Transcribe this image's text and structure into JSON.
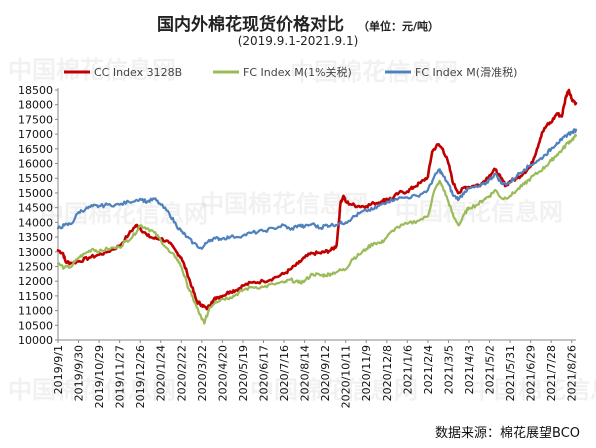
{
  "title": "国内外棉花现货价格对比",
  "unit": "（单位：元/吨）",
  "subtitle": "(2019.9.1-2021.9.1)",
  "source": "数据来源：棉花展望BCO",
  "watermark": "中国棉花信息网",
  "chart_data": {
    "type": "line",
    "title": "国内外棉花现货价格对比",
    "ylim": [
      10000,
      18500
    ],
    "y_ticks": [
      10000,
      10500,
      11000,
      11500,
      12000,
      12500,
      13000,
      13500,
      14000,
      14500,
      15000,
      15500,
      16000,
      16500,
      17000,
      17500,
      18000,
      18500
    ],
    "x_range": [
      "2019-09-01",
      "2021-09-01"
    ],
    "x_tick_labels": [
      "2019/9/1",
      "2019/9/30",
      "2019/10/29",
      "2019/11/27",
      "2019/12/26",
      "2020/1/24",
      "2020/2/22",
      "2020/3/22",
      "2020/4/20",
      "2020/5/19",
      "2020/6/17",
      "2020/7/16",
      "2020/8/14",
      "2020/9/12",
      "2020/10/11",
      "2020/11/9",
      "2020/12/8",
      "2021/1/6",
      "2021/2/4",
      "2021/3/5",
      "2021/4/3",
      "2021/5/2",
      "2021/5/31",
      "2021/6/29",
      "2021/7/28",
      "2021/8/26"
    ],
    "legend": "top",
    "series": [
      {
        "name": "CC Index 3128B",
        "color": "#c00000",
        "points": [
          [
            "2019-09-01",
            13050
          ],
          [
            "2019-09-08",
            12950
          ],
          [
            "2019-09-12",
            12650
          ],
          [
            "2019-09-20",
            12620
          ],
          [
            "2019-10-01",
            12680
          ],
          [
            "2019-10-15",
            12800
          ],
          [
            "2019-10-29",
            12900
          ],
          [
            "2019-11-10",
            13000
          ],
          [
            "2019-11-27",
            13200
          ],
          [
            "2019-12-10",
            13600
          ],
          [
            "2019-12-20",
            13900
          ],
          [
            "2019-12-26",
            13800
          ],
          [
            "2020-01-05",
            13550
          ],
          [
            "2020-01-15",
            13450
          ],
          [
            "2020-01-24",
            13450
          ],
          [
            "2020-02-05",
            13300
          ],
          [
            "2020-02-15",
            13000
          ],
          [
            "2020-02-22",
            12800
          ],
          [
            "2020-03-01",
            12300
          ],
          [
            "2020-03-08",
            11800
          ],
          [
            "2020-03-15",
            11300
          ],
          [
            "2020-03-22",
            11200
          ],
          [
            "2020-03-29",
            11050
          ],
          [
            "2020-04-05",
            11300
          ],
          [
            "2020-04-12",
            11450
          ],
          [
            "2020-04-20",
            11500
          ],
          [
            "2020-05-01",
            11650
          ],
          [
            "2020-05-10",
            11700
          ],
          [
            "2020-05-19",
            11850
          ],
          [
            "2020-06-01",
            11950
          ],
          [
            "2020-06-17",
            12000
          ],
          [
            "2020-07-01",
            12100
          ],
          [
            "2020-07-16",
            12250
          ],
          [
            "2020-07-25",
            12400
          ],
          [
            "2020-08-05",
            12600
          ],
          [
            "2020-08-14",
            12800
          ],
          [
            "2020-08-25",
            12950
          ],
          [
            "2020-09-05",
            12950
          ],
          [
            "2020-09-12",
            13000
          ],
          [
            "2020-09-20",
            13050
          ],
          [
            "2020-09-28",
            13200
          ],
          [
            "2020-10-04",
            14700
          ],
          [
            "2020-10-08",
            14900
          ],
          [
            "2020-10-11",
            14700
          ],
          [
            "2020-10-20",
            14600
          ],
          [
            "2020-10-30",
            14550
          ],
          [
            "2020-11-09",
            14550
          ],
          [
            "2020-11-20",
            14650
          ],
          [
            "2020-11-30",
            14700
          ],
          [
            "2020-12-08",
            14800
          ],
          [
            "2020-12-15",
            14800
          ],
          [
            "2020-12-25",
            15000
          ],
          [
            "2021-01-06",
            15050
          ],
          [
            "2021-01-15",
            15200
          ],
          [
            "2021-01-25",
            15350
          ],
          [
            "2021-02-04",
            15550
          ],
          [
            "2021-02-10",
            16400
          ],
          [
            "2021-02-18",
            16650
          ],
          [
            "2021-02-25",
            16500
          ],
          [
            "2021-03-05",
            16000
          ],
          [
            "2021-03-12",
            15300
          ],
          [
            "2021-03-20",
            15000
          ],
          [
            "2021-03-28",
            15200
          ],
          [
            "2021-04-03",
            15200
          ],
          [
            "2021-04-12",
            15250
          ],
          [
            "2021-04-20",
            15300
          ],
          [
            "2021-05-02",
            15600
          ],
          [
            "2021-05-10",
            15800
          ],
          [
            "2021-05-18",
            15500
          ],
          [
            "2021-05-25",
            15250
          ],
          [
            "2021-05-31",
            15400
          ],
          [
            "2021-06-10",
            15500
          ],
          [
            "2021-06-20",
            15700
          ],
          [
            "2021-06-29",
            15900
          ],
          [
            "2021-07-08",
            16500
          ],
          [
            "2021-07-15",
            17050
          ],
          [
            "2021-07-22",
            17300
          ],
          [
            "2021-07-28",
            17400
          ],
          [
            "2021-08-05",
            17700
          ],
          [
            "2021-08-12",
            17600
          ],
          [
            "2021-08-18",
            18300
          ],
          [
            "2021-08-22",
            18500
          ],
          [
            "2021-08-26",
            18200
          ],
          [
            "2021-09-01",
            18050
          ]
        ]
      },
      {
        "name": "FC Index M(1%关税)",
        "color": "#9bbb59",
        "points": [
          [
            "2019-09-01",
            12600
          ],
          [
            "2019-09-10",
            12450
          ],
          [
            "2019-09-20",
            12500
          ],
          [
            "2019-09-30",
            12800
          ],
          [
            "2019-10-10",
            12950
          ],
          [
            "2019-10-20",
            13100
          ],
          [
            "2019-10-29",
            13000
          ],
          [
            "2019-11-10",
            13100
          ],
          [
            "2019-11-27",
            13150
          ],
          [
            "2019-12-05",
            13350
          ],
          [
            "2019-12-15",
            13500
          ],
          [
            "2019-12-26",
            13900
          ],
          [
            "2020-01-05",
            13800
          ],
          [
            "2020-01-15",
            13650
          ],
          [
            "2020-01-24",
            13400
          ],
          [
            "2020-02-05",
            13000
          ],
          [
            "2020-02-15",
            12800
          ],
          [
            "2020-02-22",
            12500
          ],
          [
            "2020-03-01",
            11900
          ],
          [
            "2020-03-08",
            11500
          ],
          [
            "2020-03-15",
            11100
          ],
          [
            "2020-03-22",
            10700
          ],
          [
            "2020-03-26",
            10600
          ],
          [
            "2020-04-02",
            11100
          ],
          [
            "2020-04-10",
            11300
          ],
          [
            "2020-04-20",
            11400
          ],
          [
            "2020-05-01",
            11450
          ],
          [
            "2020-05-10",
            11550
          ],
          [
            "2020-05-19",
            11700
          ],
          [
            "2020-06-01",
            11800
          ],
          [
            "2020-06-17",
            11800
          ],
          [
            "2020-07-01",
            11900
          ],
          [
            "2020-07-16",
            11950
          ],
          [
            "2020-07-25",
            12050
          ],
          [
            "2020-08-05",
            11950
          ],
          [
            "2020-08-14",
            12000
          ],
          [
            "2020-08-25",
            12250
          ],
          [
            "2020-09-05",
            12200
          ],
          [
            "2020-09-12",
            12200
          ],
          [
            "2020-09-20",
            12250
          ],
          [
            "2020-10-01",
            12350
          ],
          [
            "2020-10-11",
            12400
          ],
          [
            "2020-10-20",
            12750
          ],
          [
            "2020-10-30",
            12900
          ],
          [
            "2020-11-09",
            13100
          ],
          [
            "2020-11-20",
            13300
          ],
          [
            "2020-11-30",
            13300
          ],
          [
            "2020-12-08",
            13500
          ],
          [
            "2020-12-20",
            13800
          ],
          [
            "2021-01-06",
            13950
          ],
          [
            "2021-01-20",
            14050
          ],
          [
            "2021-02-04",
            14200
          ],
          [
            "2021-02-12",
            15000
          ],
          [
            "2021-02-20",
            15400
          ],
          [
            "2021-02-25",
            15200
          ],
          [
            "2021-03-05",
            14700
          ],
          [
            "2021-03-12",
            14200
          ],
          [
            "2021-03-20",
            13900
          ],
          [
            "2021-03-28",
            14300
          ],
          [
            "2021-04-03",
            14500
          ],
          [
            "2021-04-15",
            14600
          ],
          [
            "2021-04-25",
            14800
          ],
          [
            "2021-05-02",
            14900
          ],
          [
            "2021-05-10",
            15100
          ],
          [
            "2021-05-20",
            14800
          ],
          [
            "2021-05-31",
            14900
          ],
          [
            "2021-06-10",
            15100
          ],
          [
            "2021-06-20",
            15300
          ],
          [
            "2021-06-29",
            15500
          ],
          [
            "2021-07-10",
            15700
          ],
          [
            "2021-07-20",
            15900
          ],
          [
            "2021-07-28",
            16100
          ],
          [
            "2021-08-05",
            16300
          ],
          [
            "2021-08-12",
            16450
          ],
          [
            "2021-08-20",
            16700
          ],
          [
            "2021-08-26",
            16800
          ],
          [
            "2021-09-01",
            16950
          ]
        ]
      },
      {
        "name": "FC Index M(滑准税)",
        "color": "#4f81bd",
        "points": [
          [
            "2019-09-01",
            13800
          ],
          [
            "2019-09-10",
            13900
          ],
          [
            "2019-09-20",
            13950
          ],
          [
            "2019-09-30",
            14350
          ],
          [
            "2019-10-10",
            14450
          ],
          [
            "2019-10-20",
            14550
          ],
          [
            "2019-10-29",
            14550
          ],
          [
            "2019-11-10",
            14600
          ],
          [
            "2019-11-27",
            14600
          ],
          [
            "2019-12-10",
            14700
          ],
          [
            "2019-12-26",
            14800
          ],
          [
            "2020-01-05",
            14700
          ],
          [
            "2020-01-15",
            14800
          ],
          [
            "2020-01-24",
            14600
          ],
          [
            "2020-02-05",
            14300
          ],
          [
            "2020-02-15",
            13900
          ],
          [
            "2020-02-22",
            13700
          ],
          [
            "2020-03-01",
            13500
          ],
          [
            "2020-03-10",
            13300
          ],
          [
            "2020-03-22",
            13100
          ],
          [
            "2020-04-01",
            13400
          ],
          [
            "2020-04-10",
            13450
          ],
          [
            "2020-04-20",
            13450
          ],
          [
            "2020-05-01",
            13500
          ],
          [
            "2020-05-19",
            13550
          ],
          [
            "2020-06-01",
            13650
          ],
          [
            "2020-06-17",
            13700
          ],
          [
            "2020-07-01",
            13800
          ],
          [
            "2020-07-16",
            13900
          ],
          [
            "2020-07-25",
            13750
          ],
          [
            "2020-08-05",
            13900
          ],
          [
            "2020-08-14",
            13850
          ],
          [
            "2020-08-25",
            13950
          ],
          [
            "2020-09-05",
            13800
          ],
          [
            "2020-09-12",
            13900
          ],
          [
            "2020-09-20",
            13900
          ],
          [
            "2020-10-01",
            13950
          ],
          [
            "2020-10-11",
            14000
          ],
          [
            "2020-10-20",
            14150
          ],
          [
            "2020-10-30",
            14300
          ],
          [
            "2020-11-09",
            14400
          ],
          [
            "2020-11-20",
            14450
          ],
          [
            "2020-11-30",
            14600
          ],
          [
            "2020-12-08",
            14700
          ],
          [
            "2020-12-20",
            14800
          ],
          [
            "2021-01-06",
            14850
          ],
          [
            "2021-01-20",
            14900
          ],
          [
            "2021-02-04",
            15100
          ],
          [
            "2021-02-12",
            15500
          ],
          [
            "2021-02-20",
            15800
          ],
          [
            "2021-02-25",
            15600
          ],
          [
            "2021-03-05",
            15300
          ],
          [
            "2021-03-12",
            14900
          ],
          [
            "2021-03-20",
            14800
          ],
          [
            "2021-03-28",
            15050
          ],
          [
            "2021-04-03",
            15150
          ],
          [
            "2021-04-15",
            15200
          ],
          [
            "2021-04-25",
            15300
          ],
          [
            "2021-05-02",
            15450
          ],
          [
            "2021-05-10",
            15650
          ],
          [
            "2021-05-20",
            15300
          ],
          [
            "2021-05-31",
            15350
          ],
          [
            "2021-06-10",
            15600
          ],
          [
            "2021-06-20",
            15800
          ],
          [
            "2021-06-29",
            15950
          ],
          [
            "2021-07-10",
            16100
          ],
          [
            "2021-07-20",
            16300
          ],
          [
            "2021-07-28",
            16500
          ],
          [
            "2021-08-05",
            16700
          ],
          [
            "2021-08-12",
            16800
          ],
          [
            "2021-08-20",
            17000
          ],
          [
            "2021-08-26",
            17050
          ],
          [
            "2021-09-01",
            17150
          ]
        ]
      }
    ]
  }
}
